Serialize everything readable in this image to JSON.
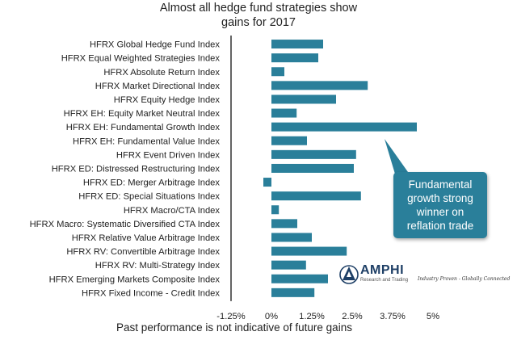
{
  "chart_data": {
    "type": "bar",
    "orientation": "horizontal",
    "title_lines": [
      "Almost all hedge fund strategies show",
      "gains for 2017"
    ],
    "categories": [
      "HFRX Global Hedge Fund Index",
      "HFRX Equal Weighted Strategies Index",
      "HFRX Absolute Return Index",
      "HFRX Market Directional Index",
      "HFRX Equity Hedge Index",
      "HFRX EH: Equity Market Neutral Index",
      "HFRX EH: Fundamental Growth Index",
      "HFRX EH: Fundamental Value Index",
      "HFRX Event Driven Index",
      "HFRX ED: Distressed Restructuring Index",
      "HFRX ED: Merger Arbitrage Index",
      "HFRX ED: Special Situations Index",
      "HFRX Macro/CTA Index",
      "HFRX Macro: Systematic Diversified CTA Index",
      "HFRX Relative Value Arbitrage Index",
      "HFRX RV: Convertible Arbitrage Index",
      "HFRX RV: Multi-Strategy Index",
      "HFRX Emerging Markets Composite Index",
      "HFRX Fixed Income - Credit Index"
    ],
    "values": [
      1.6,
      1.45,
      0.4,
      2.98,
      2.0,
      0.78,
      4.5,
      1.1,
      2.62,
      2.55,
      -0.25,
      2.77,
      0.23,
      0.8,
      1.25,
      2.33,
      1.07,
      1.75,
      1.33
    ],
    "unit": "%",
    "xlim": [
      -1.25,
      5
    ],
    "x_ticks": [
      -1.25,
      0,
      1.25,
      2.5,
      3.75,
      5
    ],
    "x_tick_labels": [
      "-1.25%",
      "0%",
      "1.25%",
      "2.5%",
      "3.75%",
      "5%"
    ],
    "bar_color": "#2a7f9a",
    "grid": false
  },
  "callout": {
    "text": "Fundamental growth strong winner on reflation trade",
    "points_to": "HFRX EH: Fundamental Growth Index"
  },
  "logo": {
    "name": "AMPHI",
    "subtitle": "Research and Trading",
    "tagline": "Industry Proven - Globally Connected"
  },
  "footnote": "Past performance is not indicative of future gains",
  "colors": {
    "accent": "#2a7f9a",
    "text": "#222222",
    "logo": "#1e3f66"
  }
}
